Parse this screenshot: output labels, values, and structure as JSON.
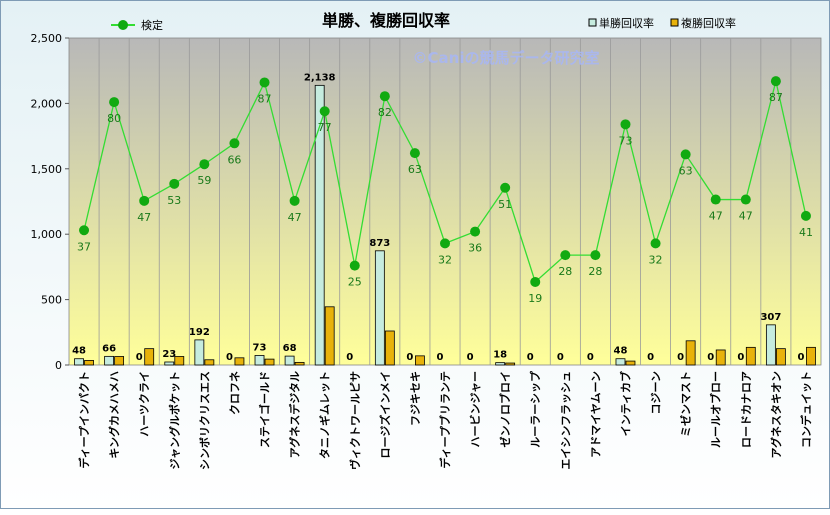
{
  "chart_data": {
    "type": "bar+line",
    "title": "単勝、複勝回収率",
    "watermark": "©Caniの競馬データ研究室",
    "categories": [
      "ディープインパクト",
      "キングカメハメハ",
      "ハーツクライ",
      "ジャングルポケット",
      "シンボリクリスエス",
      "クロフネ",
      "ステイゴールド",
      "アグネスデジタル",
      "タニノギムレット",
      "ヴィクトワールピサ",
      "ロージズインメイ",
      "フジキセキ",
      "ディープブリランテ",
      "ハービンジャー",
      "ゼンノロブロイ",
      "ルーラーシップ",
      "エイシンフラッシュ",
      "アドマイヤムーン",
      "インティカブ",
      "コジーン",
      "ミゼンマスト",
      "ルールオブロー",
      "ロードカナロア",
      "アグネスタキオン",
      "コンデュイット"
    ],
    "series": [
      {
        "name": "単勝回収率",
        "type": "bar",
        "color": "#c6ecdf",
        "values": [
          48,
          66,
          0,
          23,
          192,
          0,
          73,
          68,
          2138,
          0,
          873,
          0,
          0,
          0,
          18,
          0,
          0,
          0,
          48,
          0,
          0,
          0,
          0,
          307,
          0
        ],
        "labels": [
          "48",
          "66",
          "0",
          "23",
          "192",
          "0",
          "73",
          "68",
          "2,138",
          "0",
          "873",
          "0",
          "0",
          "0",
          "18",
          "0",
          "0",
          "0",
          "48",
          "0",
          "0",
          "0",
          "0",
          "307",
          "0"
        ]
      },
      {
        "name": "複勝回収率",
        "type": "bar",
        "color": "#e8b20a",
        "values": [
          35,
          65,
          125,
          65,
          40,
          55,
          45,
          20,
          445,
          0,
          260,
          70,
          0,
          0,
          15,
          0,
          0,
          0,
          30,
          0,
          185,
          115,
          135,
          125,
          135
        ]
      },
      {
        "name": "検定",
        "type": "line",
        "color": "#33dd33",
        "marker_color": "#11aa11",
        "values": [
          1030,
          2010,
          1255,
          1385,
          1535,
          1695,
          2160,
          1255,
          1940,
          760,
          2055,
          1620,
          930,
          1020,
          1355,
          635,
          840,
          840,
          1840,
          930,
          1610,
          1265,
          1265,
          2170,
          1140
        ],
        "labels": [
          "37",
          "80",
          "47",
          "53",
          "59",
          "66",
          "87",
          "47",
          "77",
          "25",
          "82",
          "63",
          "32",
          "36",
          "51",
          "19",
          "28",
          "28",
          "73",
          "32",
          "63",
          "47",
          "47",
          "87",
          "41"
        ]
      }
    ],
    "yaxis": {
      "min": 0,
      "max": 2500,
      "step": 500,
      "tick_labels": [
        "0",
        "500",
        "1,000",
        "1,500",
        "2,000",
        "2,500"
      ]
    },
    "grid": "vertical",
    "legend": [
      "top-left: 検定",
      "top-right: 単勝回収率, 複勝回収率"
    ],
    "plot_background": [
      "#b8b8b8",
      "#ffff9a"
    ]
  }
}
